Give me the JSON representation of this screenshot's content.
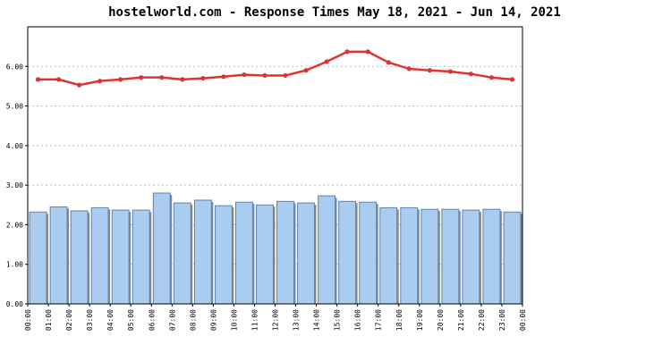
{
  "chart_data": {
    "type": "bar",
    "title": "hostelworld.com - Response Times May 18, 2021 - Jun 14, 2021",
    "xlabel": "",
    "ylabel": "",
    "ylim": [
      0,
      7
    ],
    "yticks": [
      "0.00",
      "1.00",
      "2.00",
      "3.00",
      "4.00",
      "5.00",
      "6.00"
    ],
    "categories": [
      "00:00",
      "01:00",
      "02:00",
      "03:00",
      "04:00",
      "05:00",
      "06:00",
      "07:00",
      "08:00",
      "09:00",
      "10:00",
      "11:00",
      "12:00",
      "13:00",
      "14:00",
      "15:00",
      "16:00",
      "17:00",
      "18:00",
      "19:00",
      "20:00",
      "21:00",
      "22:00",
      "23:00"
    ],
    "x_end_label": "00:00",
    "grid": true,
    "series": [
      {
        "type": "bar",
        "values": [
          2.32,
          2.45,
          2.35,
          2.43,
          2.37,
          2.37,
          2.8,
          2.55,
          2.62,
          2.48,
          2.57,
          2.5,
          2.59,
          2.55,
          2.73,
          2.59,
          2.57,
          2.43,
          2.43,
          2.39,
          2.39,
          2.37,
          2.39,
          2.32
        ]
      },
      {
        "type": "line",
        "values": [
          5.67,
          5.67,
          5.53,
          5.63,
          5.67,
          5.72,
          5.72,
          5.67,
          5.7,
          5.74,
          5.79,
          5.77,
          5.77,
          5.9,
          6.12,
          6.37,
          6.37,
          6.1,
          5.94,
          5.9,
          5.87,
          5.81,
          5.72,
          5.67
        ]
      }
    ],
    "colors": {
      "bar_fill": "#aaccee",
      "bar_stroke": "#5c84b0",
      "bar_shadow": "#888888",
      "line": "#dd3333",
      "grid": "#bbbbbb",
      "axis": "#000000"
    }
  }
}
